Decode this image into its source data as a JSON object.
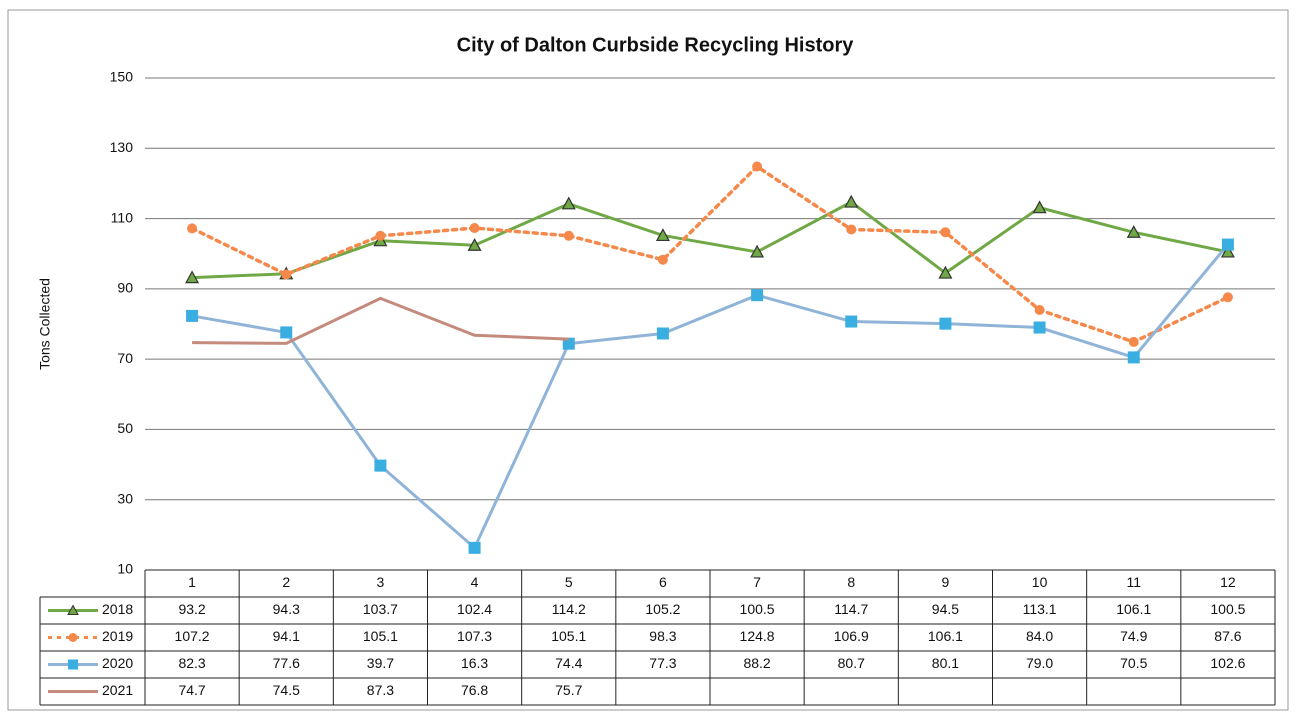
{
  "chart_data": {
    "type": "line",
    "title": "City of Dalton Curbside Recycling History",
    "y_label": "Tons Collected",
    "categories": [
      "1",
      "2",
      "3",
      "4",
      "5",
      "6",
      "7",
      "8",
      "9",
      "10",
      "11",
      "12"
    ],
    "ylim": [
      10,
      150
    ],
    "yticks": [
      10,
      30,
      50,
      70,
      90,
      110,
      130,
      150
    ],
    "grid": true,
    "series": [
      {
        "name": "2018",
        "color": "#6fa845",
        "marker": "triangle",
        "dash": "solid",
        "values": [
          93.2,
          94.3,
          103.7,
          102.4,
          114.2,
          105.2,
          100.5,
          114.7,
          94.5,
          113.1,
          106.1,
          100.5
        ],
        "value_labels": [
          "93.2",
          "94.3",
          "103.7",
          "102.4",
          "114.2",
          "105.2",
          "100.5",
          "114.7",
          "94.5",
          "113.1",
          "106.1",
          "100.5"
        ]
      },
      {
        "name": "2019",
        "color": "#f4894b",
        "marker": "circle",
        "dash": "dotted",
        "values": [
          107.2,
          94.1,
          105.1,
          107.3,
          105.1,
          98.3,
          124.8,
          106.9,
          106.1,
          84,
          74.9,
          87.6
        ],
        "value_labels": [
          "107.2",
          "94.1",
          "105.1",
          "107.3",
          "105.1",
          "98.3",
          "124.8",
          "106.9",
          "106.1",
          "84.0",
          "74.9",
          "87.6"
        ]
      },
      {
        "name": "2020",
        "color": "#8fb4d8",
        "marker_color": "#3aaee0",
        "marker": "square",
        "dash": "solid",
        "values": [
          82.3,
          77.6,
          39.7,
          16.3,
          74.4,
          77.3,
          88.2,
          80.7,
          80.1,
          79,
          70.5,
          102.6
        ],
        "value_labels": [
          "82.3",
          "77.6",
          "39.7",
          "16.3",
          "74.4",
          "77.3",
          "88.2",
          "80.7",
          "80.1",
          "79.0",
          "70.5",
          "102.6"
        ]
      },
      {
        "name": "2021",
        "color": "#c48b7c",
        "marker": "none",
        "dash": "solid",
        "values": [
          74.7,
          74.5,
          87.3,
          76.8,
          75.7,
          null,
          null,
          null,
          null,
          null,
          null,
          null
        ],
        "value_labels": [
          "74.7",
          "74.5",
          "87.3",
          "76.8",
          "75.7",
          null,
          null,
          null,
          null,
          null,
          null,
          null
        ]
      }
    ]
  }
}
